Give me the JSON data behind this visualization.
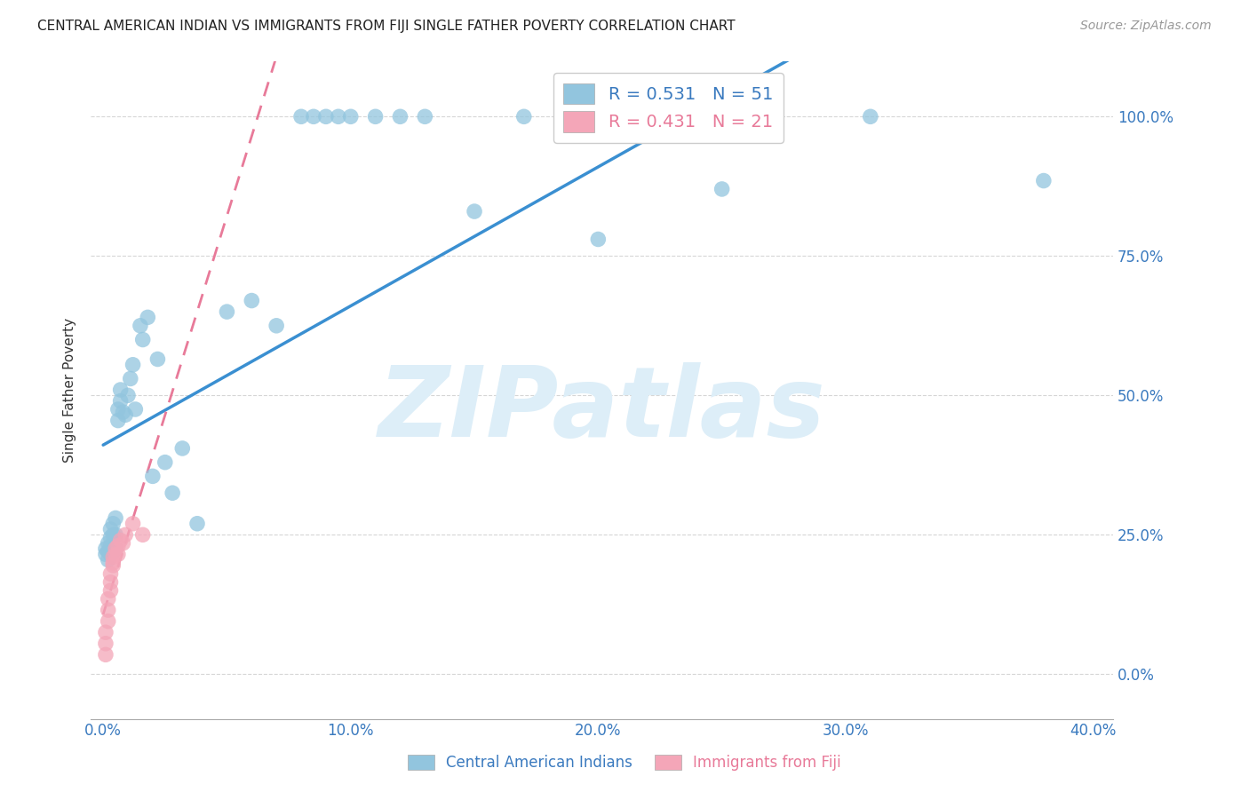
{
  "title": "CENTRAL AMERICAN INDIAN VS IMMIGRANTS FROM FIJI SINGLE FATHER POVERTY CORRELATION CHART",
  "source": "Source: ZipAtlas.com",
  "xlabel_label": "Central American Indians",
  "xlabel_label2": "Immigrants from Fiji",
  "ylabel": "Single Father Poverty",
  "blue_R": 0.531,
  "blue_N": 51,
  "pink_R": 0.431,
  "pink_N": 21,
  "blue_color": "#92c5de",
  "pink_color": "#f4a6b8",
  "blue_line_color": "#3a8fd1",
  "pink_line_color": "#e87a99",
  "watermark_color": "#ddeef8",
  "blue_x": [
    0.001,
    0.001,
    0.002,
    0.002,
    0.002,
    0.003,
    0.003,
    0.003,
    0.003,
    0.004,
    0.004,
    0.004,
    0.005,
    0.005,
    0.005,
    0.006,
    0.006,
    0.007,
    0.007,
    0.008,
    0.009,
    0.01,
    0.011,
    0.012,
    0.013,
    0.015,
    0.016,
    0.018,
    0.02,
    0.022,
    0.025,
    0.028,
    0.032,
    0.038,
    0.05,
    0.06,
    0.07,
    0.08,
    0.085,
    0.09,
    0.095,
    0.1,
    0.11,
    0.12,
    0.13,
    0.15,
    0.17,
    0.2,
    0.25,
    0.31,
    0.38
  ],
  "blue_y": [
    0.215,
    0.225,
    0.205,
    0.22,
    0.235,
    0.215,
    0.23,
    0.245,
    0.26,
    0.22,
    0.25,
    0.27,
    0.225,
    0.25,
    0.28,
    0.455,
    0.475,
    0.49,
    0.51,
    0.47,
    0.465,
    0.5,
    0.53,
    0.555,
    0.475,
    0.625,
    0.6,
    0.64,
    0.355,
    0.565,
    0.38,
    0.325,
    0.405,
    0.27,
    0.65,
    0.67,
    0.625,
    1.0,
    1.0,
    1.0,
    1.0,
    1.0,
    1.0,
    1.0,
    1.0,
    0.83,
    1.0,
    0.78,
    0.87,
    1.0,
    0.885
  ],
  "pink_x": [
    0.001,
    0.001,
    0.001,
    0.002,
    0.002,
    0.002,
    0.003,
    0.003,
    0.003,
    0.004,
    0.004,
    0.004,
    0.005,
    0.005,
    0.006,
    0.006,
    0.007,
    0.008,
    0.009,
    0.012,
    0.016
  ],
  "pink_y": [
    0.035,
    0.055,
    0.075,
    0.095,
    0.115,
    0.135,
    0.15,
    0.165,
    0.18,
    0.195,
    0.21,
    0.2,
    0.215,
    0.225,
    0.23,
    0.215,
    0.24,
    0.235,
    0.25,
    0.27,
    0.25
  ]
}
